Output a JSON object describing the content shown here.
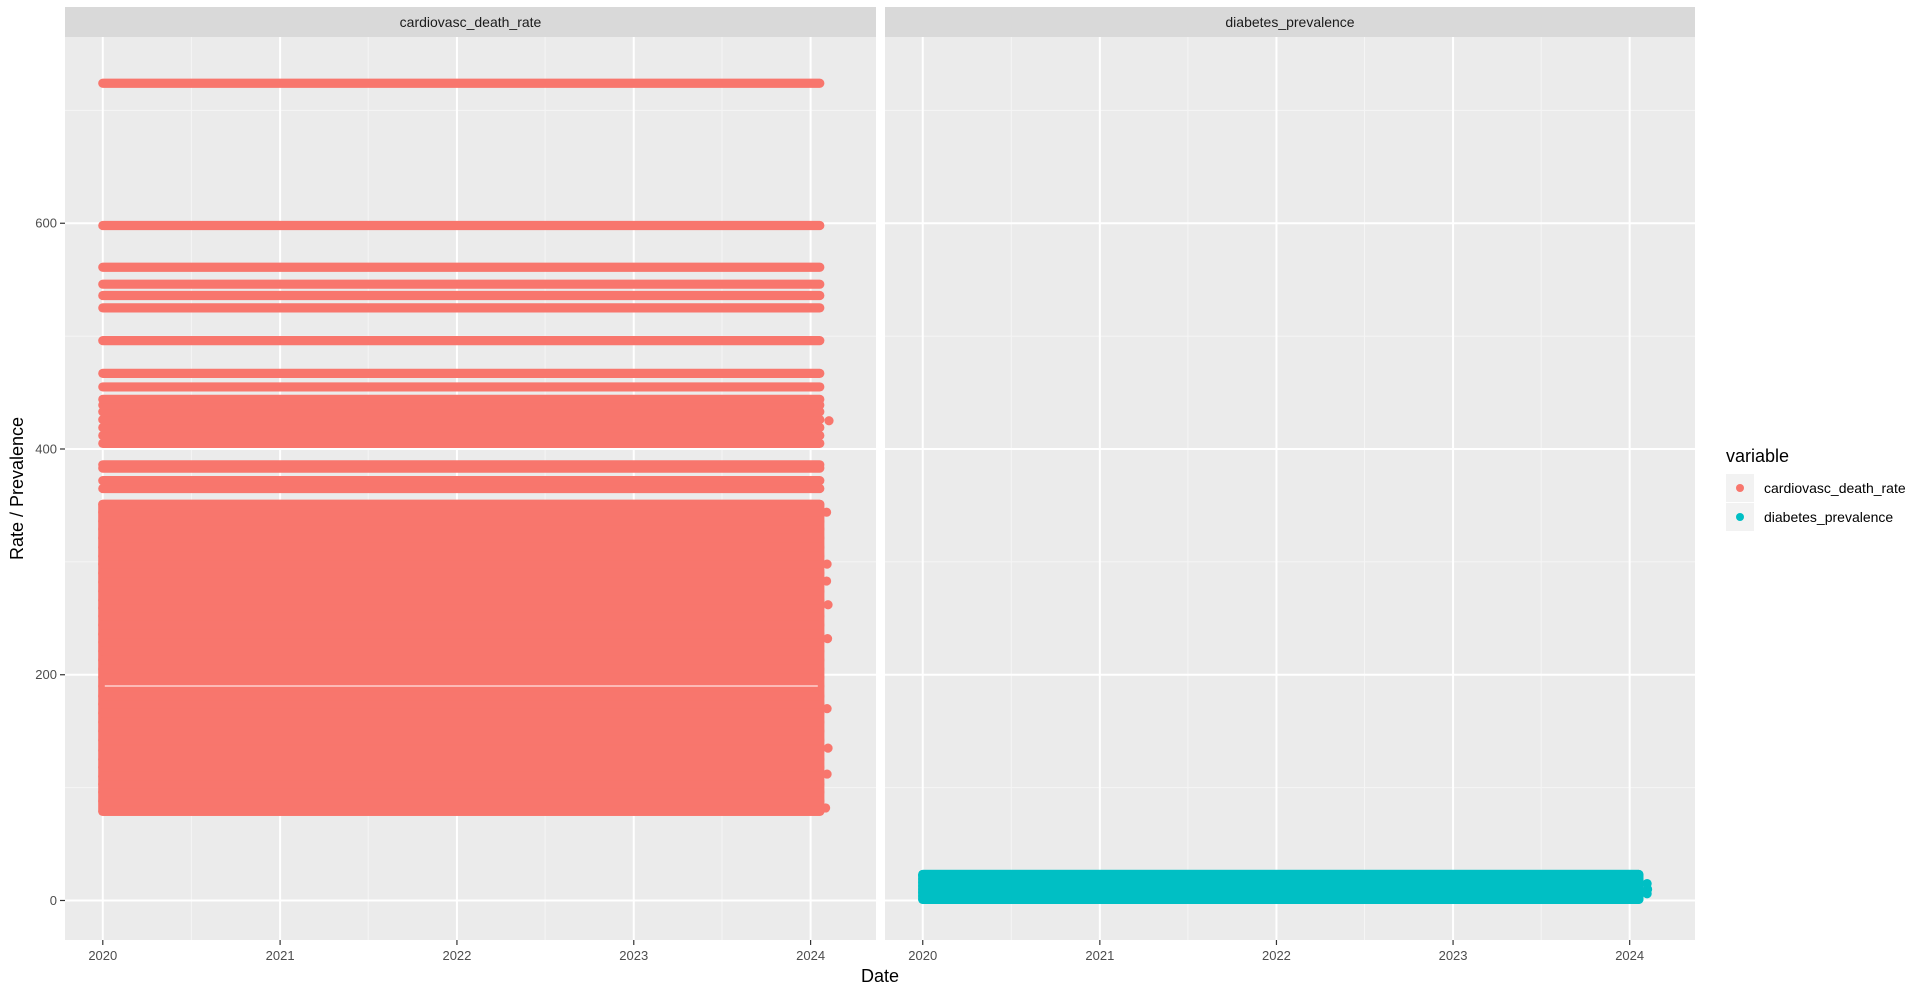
{
  "chart_data": {
    "type": "scatter",
    "xlabel": "Date",
    "ylabel": "Rate / Prevalence",
    "x_ticks": [
      "2020",
      "2021",
      "2022",
      "2023",
      "2024"
    ],
    "y_ticks": [
      "0",
      "200",
      "400",
      "600"
    ],
    "ylim": [
      -35,
      765
    ],
    "xlim": [
      "2019-10-15",
      "2024-05-15"
    ],
    "x_range_points": [
      "2020-01-01",
      "2024-01-20"
    ],
    "grid": true,
    "legend": {
      "title": "variable",
      "position": "right",
      "entries": [
        {
          "name": "cardiovasc_death_rate",
          "color": "#F8766D"
        },
        {
          "name": "diabetes_prevalence",
          "color": "#00BFC4"
        }
      ]
    },
    "facets": [
      {
        "strip": "cardiovasc_death_rate",
        "color": "#F8766D",
        "series": "cardiovasc_death_rate",
        "dense_range": [
          79,
          351
        ],
        "levels": [
          79,
          88,
          96,
          103,
          110,
          118,
          125,
          133,
          142,
          150,
          158,
          166,
          174,
          181,
          190,
          198,
          205,
          213,
          221,
          229,
          236,
          244,
          252,
          259,
          266,
          274,
          282,
          290,
          298,
          305,
          313,
          321,
          329,
          336,
          344,
          351,
          365,
          372,
          383,
          386,
          405,
          412,
          419,
          426,
          433,
          439,
          444,
          455,
          467,
          496,
          525,
          536,
          546,
          561,
          598,
          724
        ],
        "late_extras": [
          {
            "date": "2024-02-01",
            "value": 82
          },
          {
            "date": "2024-02-04",
            "value": 112
          },
          {
            "date": "2024-02-06",
            "value": 135
          },
          {
            "date": "2024-02-04",
            "value": 170
          },
          {
            "date": "2024-02-05",
            "value": 232
          },
          {
            "date": "2024-02-06",
            "value": 262
          },
          {
            "date": "2024-02-03",
            "value": 283
          },
          {
            "date": "2024-02-04",
            "value": 298
          },
          {
            "date": "2024-02-03",
            "value": 344
          },
          {
            "date": "2024-02-08",
            "value": 425
          }
        ]
      },
      {
        "strip": "diabetes_prevalence",
        "color": "#00BFC4",
        "series": "diabetes_prevalence",
        "dense_range": [
          1,
          23
        ],
        "levels": [
          1,
          4,
          7,
          10,
          13,
          16,
          19,
          22,
          23
        ],
        "late_extras": [
          {
            "date": "2024-02-06",
            "value": 6
          },
          {
            "date": "2024-02-07",
            "value": 10
          },
          {
            "date": "2024-02-06",
            "value": 15
          }
        ]
      }
    ]
  }
}
